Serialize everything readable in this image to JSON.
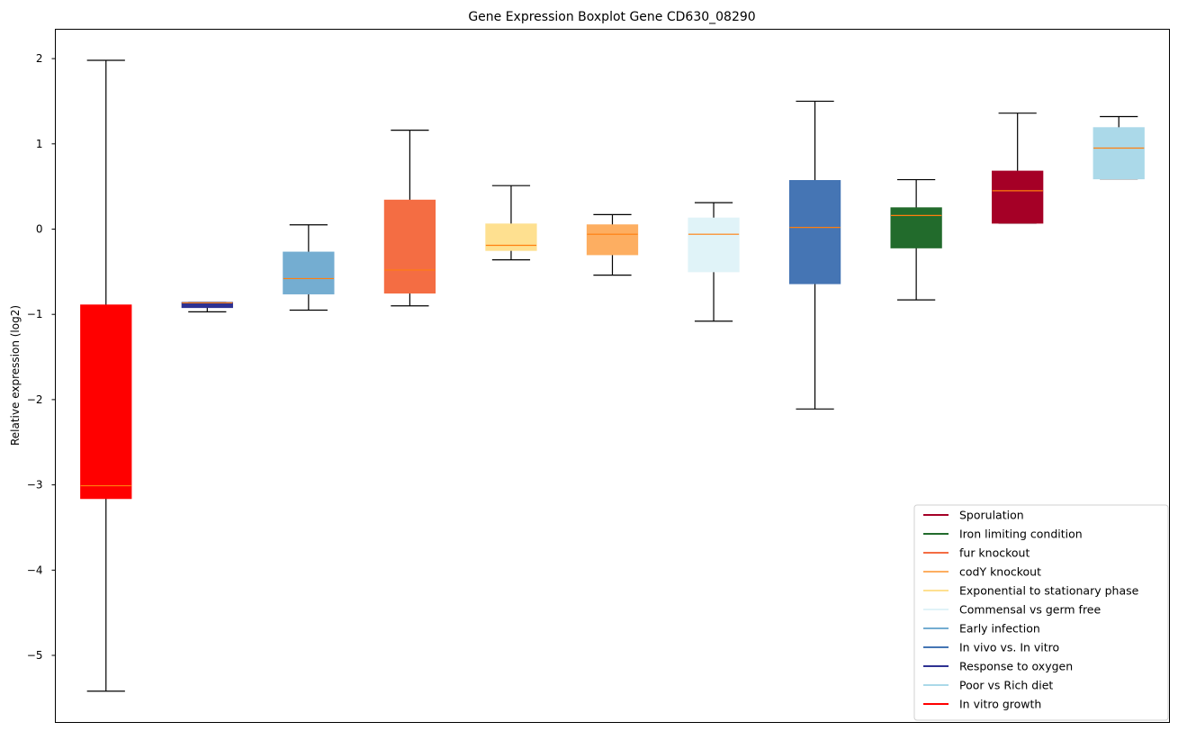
{
  "chart_data": {
    "type": "box",
    "title": "Gene Expression Boxplot Gene CD630_08290",
    "xlabel": "",
    "ylabel": "Relative expression (log2)",
    "ylim": [
      -5.8,
      2.32
    ],
    "yticks": [
      2,
      1,
      0,
      -1,
      -2,
      -3,
      -4,
      -5
    ],
    "ytick_labels": [
      "2",
      "1",
      "0",
      "−1",
      "−2",
      "−3",
      "−4",
      "−5"
    ],
    "median_color": "#ff7f0e",
    "boxes": [
      {
        "name": "In vitro growth",
        "color": "#ff0000",
        "whislo": -5.42,
        "q1": -3.16,
        "med": -3.01,
        "q3": -0.89,
        "whishi": 1.98
      },
      {
        "name": "Response to oxygen",
        "color": "#2e3192",
        "whislo": -0.97,
        "q1": -0.92,
        "med": -0.865,
        "q3": -0.86,
        "whishi": -0.86
      },
      {
        "name": "Early infection",
        "color": "#74add1",
        "whislo": -0.95,
        "q1": -0.76,
        "med": -0.58,
        "q3": -0.27,
        "whishi": 0.05
      },
      {
        "name": "fur knockout",
        "color": "#f46d43",
        "whislo": -0.9,
        "q1": -0.75,
        "med": -0.48,
        "q3": 0.34,
        "whishi": 1.16
      },
      {
        "name": "Exponential to stationary phase",
        "color": "#fee090",
        "whislo": -0.36,
        "q1": -0.25,
        "med": -0.19,
        "q3": 0.06,
        "whishi": 0.51
      },
      {
        "name": "codY knockout",
        "color": "#fdae61",
        "whislo": -0.54,
        "q1": -0.3,
        "med": -0.06,
        "q3": 0.05,
        "whishi": 0.17
      },
      {
        "name": "Commensal vs germ free",
        "color": "#e0f3f8",
        "whislo": -1.08,
        "q1": -0.5,
        "med": -0.06,
        "q3": 0.13,
        "whishi": 0.31
      },
      {
        "name": "In vivo vs. In vitro",
        "color": "#4575b4",
        "whislo": -2.11,
        "q1": -0.64,
        "med": 0.02,
        "q3": 0.57,
        "whishi": 1.5
      },
      {
        "name": "Iron limiting condition",
        "color": "#226b2c",
        "whislo": -0.83,
        "q1": -0.22,
        "med": 0.16,
        "q3": 0.25,
        "whishi": 0.58
      },
      {
        "name": "Sporulation",
        "color": "#a50026",
        "whislo": 0.07,
        "q1": 0.07,
        "med": 0.45,
        "q3": 0.68,
        "whishi": 1.36
      },
      {
        "name": "Poor vs Rich diet",
        "color": "#abd9e9",
        "whislo": 0.59,
        "q1": 0.59,
        "med": 0.95,
        "q3": 1.19,
        "whishi": 1.32
      }
    ],
    "legend": {
      "placement": "lower-right",
      "entries": [
        {
          "label": "Sporulation",
          "color": "#a50026"
        },
        {
          "label": "Iron limiting condition",
          "color": "#226b2c"
        },
        {
          "label": "fur knockout",
          "color": "#f46d43"
        },
        {
          "label": "codY knockout",
          "color": "#fdae61"
        },
        {
          "label": "Exponential to stationary phase",
          "color": "#fee090"
        },
        {
          "label": "Commensal vs germ free",
          "color": "#e0f3f8"
        },
        {
          "label": "Early infection",
          "color": "#74add1"
        },
        {
          "label": "In vivo vs. In vitro",
          "color": "#4575b4"
        },
        {
          "label": "Response to oxygen",
          "color": "#2e3192"
        },
        {
          "label": "Poor vs Rich diet",
          "color": "#abd9e9"
        },
        {
          "label": "In vitro growth",
          "color": "#ff0000"
        }
      ]
    }
  }
}
